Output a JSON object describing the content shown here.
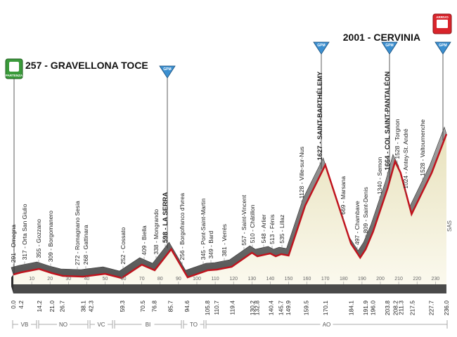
{
  "header": {
    "start": "257 - GRAVELLONA TOCE",
    "finish": "2001 - CERVINIA",
    "start_badge": "PARTENZA",
    "finish_badge": "ARRIVO"
  },
  "gpm": [
    "GPM",
    "GPM",
    "GPM",
    "GPM"
  ],
  "places": [
    "291 - Omegna",
    "317 - Orta San Giulio",
    "355 - Gozzano",
    "309 - Borgomanero",
    "272 - Romagnano Sesia",
    "268 - Gattinara",
    "252 - Cossato",
    "409 - Biella",
    "338 - Mongrando",
    "598 - LA SERRA",
    "256 - Borgofranco d'Ivrea",
    "345 - Pont-Saint-Martin",
    "349 - Bard",
    "381 - Verrès",
    "557 - Saint-Vincent",
    "510 - Châtillon",
    "548 - Arlier",
    "513 - Fénis",
    "535 - Lillaz",
    "1128 - Ville-sur-Nus",
    "1627 - SAINT-BARTHÉLEMY",
    "669 - Marsana",
    "497 - Chambave",
    "809 - Saint-Denis",
    "1340 - Semon",
    "1664 - COL SAINT-PANTALÉON",
    "1528 - Torgnon",
    "1024 - Antey-St. André",
    "1528 - Valtournenche"
  ],
  "km": [
    "0.0",
    "4.2",
    "14.2",
    "21.0",
    "26.7",
    "38.1",
    "42.3",
    "59.3",
    "70.5",
    "76.8",
    "85.7",
    "94.6",
    "105.8",
    "110.7",
    "119.4",
    "130.2",
    "132.8",
    "140.4",
    "145.7",
    "149.9",
    "159.5",
    "170.1",
    "184.1",
    "191.9",
    "196.0",
    "203.8",
    "208.2",
    "211.3",
    "217.5",
    "227.7",
    "236.0"
  ],
  "km_axis": [
    10,
    20,
    30,
    40,
    50,
    60,
    70,
    80,
    90,
    100,
    110,
    120,
    130,
    140,
    150,
    160,
    170,
    180,
    190,
    200,
    210,
    220,
    230
  ],
  "regions": [
    "VB",
    "NO",
    "VC",
    "BI",
    "TO",
    "AO"
  ],
  "side_label": "SAS"
}
